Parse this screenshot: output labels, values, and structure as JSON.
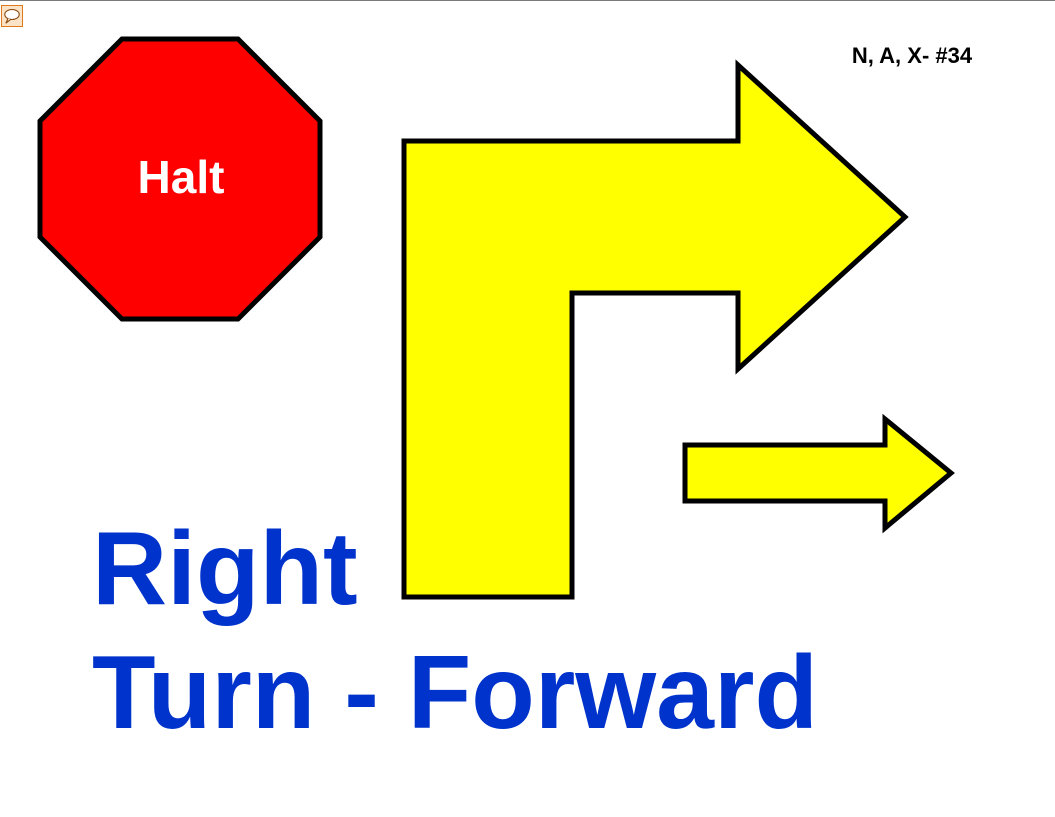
{
  "toolbar": {
    "comment_icon": "speech-bubble-icon"
  },
  "sign": {
    "code": "N, A, X- #34",
    "halt_label": "Halt",
    "title_line_1": "Right",
    "title_line_2": "Turn - Forward"
  },
  "colors": {
    "stop_red": "#ff0000",
    "arrow_yellow": "#ffff00",
    "title_blue": "#0033cc",
    "outline": "#000000",
    "halt_text": "#ffffff",
    "icon_orange": "#e07a1f"
  }
}
